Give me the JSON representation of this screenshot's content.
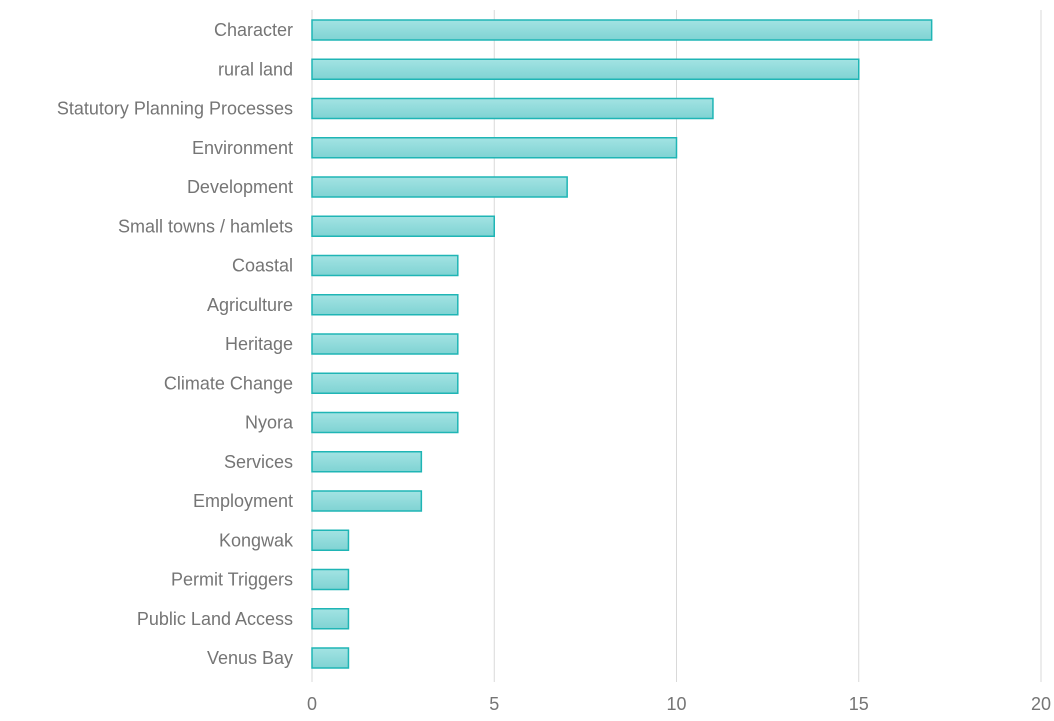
{
  "chart_data": {
    "type": "bar",
    "orientation": "horizontal",
    "categories": [
      "Character",
      "rural land",
      "Statutory Planning Processes",
      "Environment",
      "Development",
      "Small towns / hamlets",
      "Coastal",
      "Agriculture",
      "Heritage",
      "Climate Change",
      "Nyora",
      "Services",
      "Employment",
      "Kongwak",
      "Permit Triggers",
      "Public Land Access",
      "Venus Bay"
    ],
    "values": [
      17,
      15,
      11,
      10,
      7,
      5,
      4,
      4,
      4,
      4,
      4,
      3,
      3,
      1,
      1,
      1,
      1
    ],
    "xlim": [
      0,
      20
    ],
    "xticks": [
      "0",
      "5",
      "10",
      "15",
      "20"
    ],
    "grid": "vertical",
    "legend": "none",
    "colors": {
      "bar_fill_top": "#a3e3e3",
      "bar_fill_bottom": "#7fd3d3",
      "bar_stroke": "#1fb5b5",
      "grid": "#d9d9d9",
      "label": "#757575"
    }
  }
}
